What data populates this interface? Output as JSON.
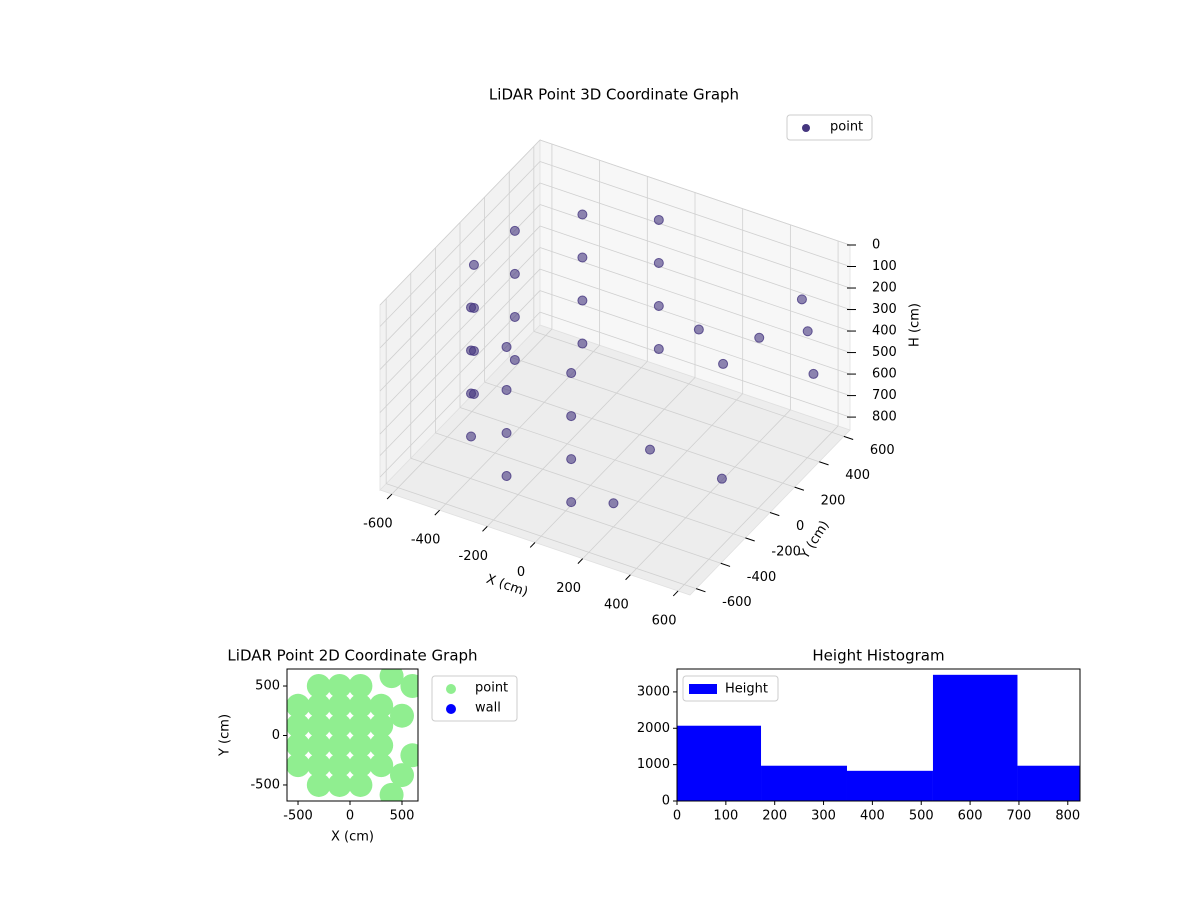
{
  "chart_data": [
    {
      "type": "scatter3d",
      "title": "LiDAR Point 3D Coordinate Graph",
      "xlabel": "X (cm)",
      "ylabel": "Y (cm)",
      "zlabel": "H (cm)",
      "xlim": [
        -650,
        650
      ],
      "ylim": [
        -650,
        650
      ],
      "zlim": [
        0,
        860
      ],
      "z_inverted": true,
      "xticks": [
        -600,
        -400,
        -200,
        0,
        200,
        400,
        600
      ],
      "yticks": [
        -600,
        -400,
        -200,
        0,
        200,
        400,
        600
      ],
      "zticks": [
        0,
        100,
        200,
        300,
        400,
        500,
        600,
        700,
        800
      ],
      "grid": true,
      "legend": "upper right",
      "series": [
        {
          "name": "point",
          "color": "#45367f",
          "x": [
            -96,
            -354,
            -517,
            -542,
            -421,
            -188,
            96,
            -96,
            -354,
            -517,
            -542,
            -421,
            -188,
            96,
            -96,
            -354,
            -517,
            -542,
            -421,
            -188,
            96,
            -96,
            -354,
            -517,
            -542,
            -421,
            -188,
            96,
            300,
            350,
            250,
            450,
            500,
            200,
            550,
            600,
            500
          ],
          "y": [
            542,
            421,
            188,
            -96,
            -354,
            -517,
            -542,
            542,
            421,
            188,
            -96,
            -354,
            -517,
            -542,
            542,
            421,
            188,
            -96,
            -354,
            -517,
            -542,
            542,
            421,
            188,
            -96,
            -354,
            -517,
            -542,
            100,
            200,
            -200,
            300,
            -100,
            -400,
            500,
            450,
            550
          ],
          "z": [
            100,
            100,
            100,
            100,
            100,
            100,
            100,
            300,
            300,
            300,
            300,
            300,
            300,
            300,
            500,
            500,
            500,
            500,
            500,
            500,
            500,
            700,
            700,
            700,
            700,
            700,
            700,
            700,
            200,
            400,
            600,
            300,
            700,
            750,
            350,
            500,
            250
          ]
        }
      ]
    },
    {
      "type": "scatter",
      "title": "LiDAR Point 2D Coordinate Graph",
      "xlabel": "X (cm)",
      "ylabel": "Y (cm)",
      "xlim": [
        -606,
        654
      ],
      "ylim": [
        -662,
        672
      ],
      "xticks": [
        -500,
        0,
        500
      ],
      "yticks": [
        -500,
        0,
        500
      ],
      "legend": "outside upper right",
      "series": [
        {
          "name": "point",
          "color": "#90ee90",
          "x": [
            -500,
            -500,
            -500,
            -500,
            -300,
            -300,
            -300,
            -300,
            -300,
            -300,
            -100,
            -100,
            -100,
            -100,
            -100,
            -100,
            100,
            100,
            100,
            100,
            100,
            100,
            300,
            300,
            300,
            300,
            400,
            500,
            600,
            500,
            600,
            400
          ],
          "y": [
            -300,
            -100,
            100,
            300,
            -500,
            -300,
            -100,
            100,
            300,
            500,
            -500,
            -300,
            -100,
            100,
            300,
            500,
            -500,
            -300,
            -100,
            100,
            300,
            500,
            -300,
            -100,
            100,
            300,
            -600,
            -400,
            -200,
            200,
            500,
            600
          ]
        },
        {
          "name": "wall",
          "color": "#0000ff",
          "x": [],
          "y": []
        }
      ]
    },
    {
      "type": "histogram",
      "title": "Height Histogram",
      "bins": [
        0,
        172,
        348,
        524,
        697,
        825
      ],
      "xlim": [
        0,
        825
      ],
      "ylim": [
        0,
        3630
      ],
      "xticks": [
        0,
        100,
        200,
        300,
        400,
        500,
        600,
        700,
        800
      ],
      "yticks": [
        0,
        1000,
        2000,
        3000
      ],
      "legend": "upper left",
      "series": [
        {
          "name": "Height",
          "color": "#0000ff",
          "values": [
            2070,
            970,
            830,
            3470,
            970
          ]
        }
      ]
    }
  ]
}
